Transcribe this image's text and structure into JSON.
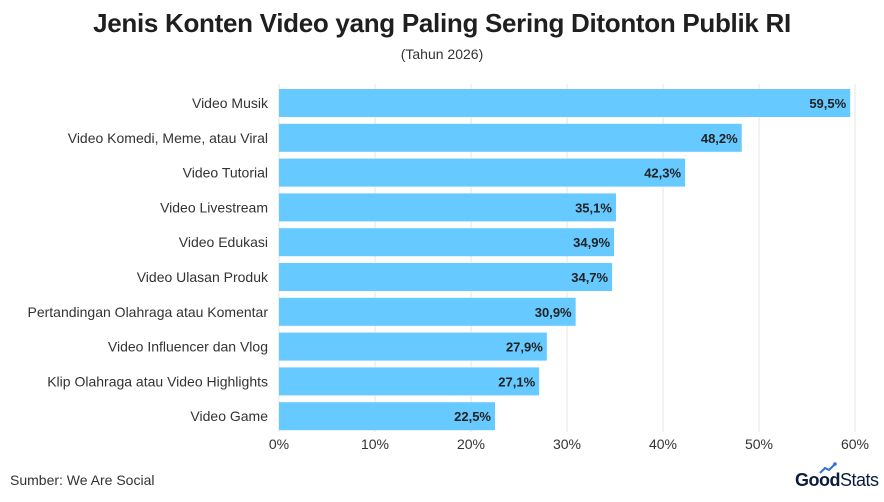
{
  "header": {
    "title": "Jenis Konten Video yang Paling Sering Ditonton Publik RI",
    "subtitle": "(Tahun 2026)"
  },
  "footer": {
    "source": "Sumber: We Are Social",
    "logo_good": "Good",
    "logo_stats": "Stats"
  },
  "colors": {
    "bar": "#66c9ff",
    "grid": "#e6e6e6",
    "text": "#222222"
  },
  "chart_data": {
    "type": "bar",
    "orientation": "horizontal",
    "title": "Jenis Konten Video yang Paling Sering Ditonton Publik RI",
    "subtitle": "(Tahun 2026)",
    "categories": [
      "Video Musik",
      "Video Komedi, Meme, atau Viral",
      "Video Tutorial",
      "Video Livestream",
      "Video Edukasi",
      "Video Ulasan Produk",
      "Pertandingan Olahraga atau Komentar",
      "Video Influencer dan Vlog",
      "Klip Olahraga atau Video Highlights",
      "Video Game"
    ],
    "values": [
      59.5,
      48.2,
      42.3,
      35.1,
      34.9,
      34.7,
      30.9,
      27.9,
      27.1,
      22.5
    ],
    "value_labels": [
      "59,5%",
      "48,2%",
      "42,3%",
      "35,1%",
      "34,9%",
      "34,7%",
      "30,9%",
      "27,9%",
      "27,1%",
      "22,5%"
    ],
    "xlim": [
      0,
      60
    ],
    "xticks": [
      0,
      10,
      20,
      30,
      40,
      50,
      60
    ],
    "xtick_labels": [
      "0%",
      "10%",
      "20%",
      "30%",
      "40%",
      "50%",
      "60%"
    ],
    "grid": true,
    "legend": false
  }
}
